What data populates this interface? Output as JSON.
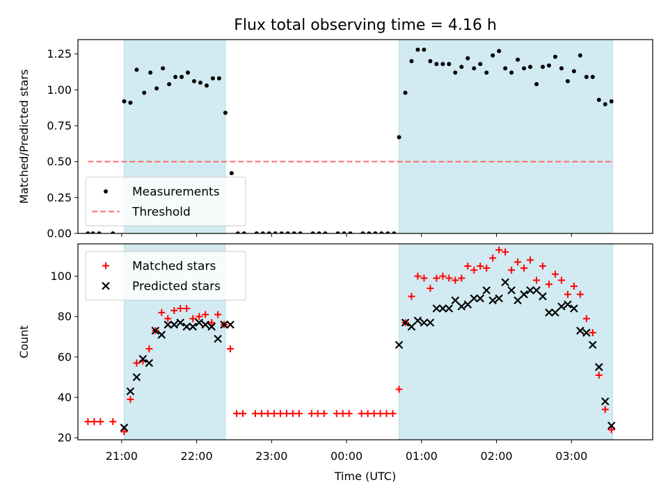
{
  "chart_data": [
    {
      "type": "scatter",
      "title": "Flux total observing time = 4.16 h",
      "xlabel": "",
      "ylabel": "Matched/Predicted stars",
      "ylim": [
        0.0,
        1.35
      ],
      "xlim": [
        "20:25",
        "04:05"
      ],
      "y_ticks": [
        "0.00",
        "0.25",
        "0.50",
        "0.75",
        "1.00",
        "1.25"
      ],
      "y_tick_values": [
        0.0,
        0.25,
        0.5,
        0.75,
        1.0,
        1.25
      ],
      "x_tick_positions": [
        "21:00",
        "22:00",
        "23:00",
        "00:00",
        "01:00",
        "02:00",
        "03:00"
      ],
      "shaded_intervals": [
        [
          "21:02",
          "22:23"
        ],
        [
          "00:42",
          "03:33"
        ]
      ],
      "shade_color": "#add8e6",
      "legend": {
        "placement": "lower-left",
        "entries": [
          "Measurements",
          "Threshold"
        ]
      },
      "threshold": {
        "name": "Threshold",
        "value": 0.5,
        "x_range": [
          "20:33",
          "03:33"
        ],
        "color": "#ff6b6b"
      },
      "series": [
        {
          "name": "Measurements",
          "color": "#000000",
          "marker": "dot",
          "x": [
            "20:33",
            "20:37",
            "20:42",
            "20:53",
            "21:02",
            "21:07",
            "21:12",
            "21:18",
            "21:23",
            "21:28",
            "21:33",
            "21:38",
            "21:43",
            "21:48",
            "21:53",
            "21:58",
            "22:03",
            "22:08",
            "22:13",
            "22:18",
            "22:23",
            "22:28",
            "22:33",
            "22:38",
            "22:48",
            "22:53",
            "22:58",
            "23:03",
            "23:08",
            "23:13",
            "23:18",
            "23:23",
            "23:33",
            "23:38",
            "23:43",
            "23:53",
            "23:58",
            "00:03",
            "00:13",
            "00:18",
            "00:23",
            "00:28",
            "00:33",
            "00:38",
            "00:42",
            "00:47",
            "00:52",
            "00:57",
            "01:02",
            "01:07",
            "01:12",
            "01:17",
            "01:22",
            "01:27",
            "01:32",
            "01:37",
            "01:42",
            "01:47",
            "01:52",
            "01:57",
            "02:02",
            "02:07",
            "02:12",
            "02:17",
            "02:22",
            "02:27",
            "02:32",
            "02:37",
            "02:42",
            "02:47",
            "02:52",
            "02:57",
            "03:02",
            "03:07",
            "03:12",
            "03:17",
            "03:22",
            "03:27",
            "03:32"
          ],
          "y": [
            0.0,
            0.0,
            0.0,
            0.0,
            0.92,
            0.91,
            1.14,
            0.98,
            1.12,
            1.01,
            1.15,
            1.04,
            1.09,
            1.09,
            1.12,
            1.06,
            1.05,
            1.03,
            1.08,
            1.08,
            0.84,
            0.42,
            0.0,
            0.0,
            0.0,
            0.0,
            0.0,
            0.0,
            0.0,
            0.0,
            0.0,
            0.0,
            0.0,
            0.0,
            0.0,
            0.0,
            0.0,
            0.0,
            0.0,
            0.0,
            0.0,
            0.0,
            0.0,
            0.0,
            0.67,
            0.98,
            1.2,
            1.28,
            1.28,
            1.2,
            1.18,
            1.18,
            1.18,
            1.12,
            1.16,
            1.22,
            1.15,
            1.18,
            1.12,
            1.24,
            1.27,
            1.15,
            1.12,
            1.21,
            1.15,
            1.16,
            1.04,
            1.16,
            1.17,
            1.23,
            1.15,
            1.06,
            1.13,
            1.24,
            1.09,
            1.09,
            0.93,
            0.9,
            0.92
          ]
        }
      ]
    },
    {
      "type": "scatter",
      "title": "",
      "xlabel": "Time (UTC)",
      "ylabel": "Count",
      "ylim": [
        19.0,
        116.0
      ],
      "xlim": [
        "20:25",
        "04:05"
      ],
      "y_ticks": [
        "20",
        "40",
        "60",
        "80",
        "100"
      ],
      "y_tick_values": [
        20,
        40,
        60,
        80,
        100
      ],
      "x_ticks": [
        "21:00",
        "22:00",
        "23:00",
        "00:00",
        "01:00",
        "02:00",
        "03:00"
      ],
      "shaded_intervals": [
        [
          "21:02",
          "22:23"
        ],
        [
          "00:42",
          "03:33"
        ]
      ],
      "shade_color": "#add8e6",
      "legend": {
        "placement": "upper-left",
        "entries": [
          "Matched stars",
          "Predicted stars"
        ]
      },
      "series": [
        {
          "name": "Matched stars",
          "color": "#ff0000",
          "marker": "plus",
          "x": [
            "20:33",
            "20:38",
            "20:43",
            "20:53",
            "21:02",
            "21:07",
            "21:12",
            "21:17",
            "21:22",
            "21:27",
            "21:32",
            "21:37",
            "21:42",
            "21:47",
            "21:52",
            "21:57",
            "22:02",
            "22:07",
            "22:12",
            "22:17",
            "22:22",
            "22:27",
            "22:32",
            "22:37",
            "22:47",
            "22:52",
            "22:57",
            "23:02",
            "23:07",
            "23:12",
            "23:17",
            "23:22",
            "23:32",
            "23:37",
            "23:42",
            "23:52",
            "23:57",
            "00:02",
            "00:12",
            "00:17",
            "00:22",
            "00:27",
            "00:32",
            "00:37",
            "00:42",
            "00:47",
            "00:52",
            "00:57",
            "01:02",
            "01:07",
            "01:12",
            "01:17",
            "01:22",
            "01:27",
            "01:32",
            "01:37",
            "01:42",
            "01:47",
            "01:52",
            "01:57",
            "02:02",
            "02:07",
            "02:12",
            "02:17",
            "02:22",
            "02:27",
            "02:32",
            "02:37",
            "02:42",
            "02:47",
            "02:52",
            "02:57",
            "03:02",
            "03:07",
            "03:12",
            "03:17",
            "03:22",
            "03:27",
            "03:32"
          ],
          "y": [
            28,
            28,
            28,
            28,
            23,
            39,
            57,
            58,
            64,
            73,
            82,
            79,
            83,
            84,
            84,
            79,
            80,
            81,
            77,
            81,
            76,
            64,
            32,
            32,
            32,
            32,
            32,
            32,
            32,
            32,
            32,
            32,
            32,
            32,
            32,
            32,
            32,
            32,
            32,
            32,
            32,
            32,
            32,
            32,
            44,
            77,
            90,
            100,
            99,
            94,
            99,
            100,
            99,
            98,
            99,
            105,
            103,
            105,
            104,
            109,
            113,
            112,
            103,
            107,
            104,
            108,
            98,
            105,
            96,
            101,
            98,
            91,
            95,
            91,
            79,
            72,
            51,
            34,
            24
          ]
        },
        {
          "name": "Predicted stars",
          "color": "#000000",
          "marker": "x",
          "x": [
            "21:02",
            "21:07",
            "21:12",
            "21:17",
            "21:22",
            "21:27",
            "21:32",
            "21:37",
            "21:42",
            "21:47",
            "21:52",
            "21:57",
            "22:02",
            "22:07",
            "22:12",
            "22:17",
            "22:22",
            "22:27",
            "00:42",
            "00:47",
            "00:52",
            "00:57",
            "01:02",
            "01:07",
            "01:12",
            "01:17",
            "01:22",
            "01:27",
            "01:32",
            "01:37",
            "01:42",
            "01:47",
            "01:52",
            "01:57",
            "02:02",
            "02:07",
            "02:12",
            "02:17",
            "02:22",
            "02:27",
            "02:32",
            "02:37",
            "02:42",
            "02:47",
            "02:52",
            "02:57",
            "03:02",
            "03:07",
            "03:12",
            "03:17",
            "03:22",
            "03:27",
            "03:32"
          ],
          "y": [
            25,
            43,
            50,
            59,
            57,
            73,
            71,
            76,
            76,
            77,
            75,
            75,
            77,
            76,
            75,
            69,
            76,
            76,
            66,
            77,
            75,
            78,
            77,
            77,
            84,
            84,
            84,
            88,
            85,
            86,
            89,
            89,
            93,
            88,
            89,
            97,
            93,
            88,
            91,
            93,
            93,
            90,
            82,
            82,
            85,
            86,
            84,
            73,
            72,
            66,
            55,
            38,
            26
          ]
        }
      ]
    }
  ]
}
